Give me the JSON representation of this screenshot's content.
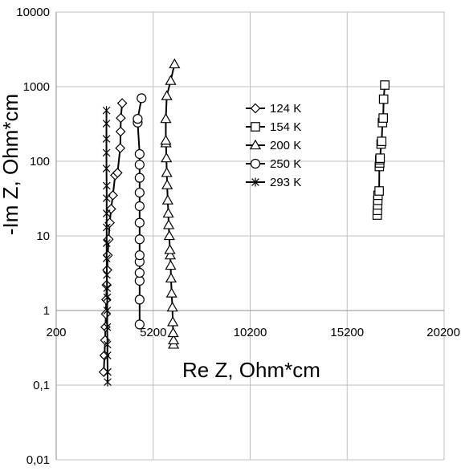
{
  "chart_data": {
    "type": "scatter",
    "xlabel": "Re Z, Ohm*cm",
    "ylabel": "-Im Z, Ohm*cm",
    "x_axis": {
      "min": 200,
      "max": 20200,
      "ticks": [
        200,
        5200,
        10200,
        15200,
        20200
      ],
      "tick_labels": [
        "200",
        "5200",
        "10200",
        "15200",
        "20200"
      ],
      "crosses_y_at": 1
    },
    "y_axis": {
      "scale": "log",
      "min": 0.01,
      "max": 10000,
      "ticks": [
        0.01,
        0.1,
        1,
        10,
        100,
        1000,
        10000
      ],
      "tick_labels": [
        "0,01",
        "0,1",
        "1",
        "10",
        "100",
        "1000",
        "10000"
      ]
    },
    "grid": {
      "horizontal": true,
      "vertical": true
    },
    "legend_position": "center-right",
    "series": [
      {
        "name": "124 K",
        "marker": "diamond",
        "points": [
          [
            2650,
            0.15
          ],
          [
            2690,
            0.25
          ],
          [
            2720,
            0.4
          ],
          [
            2740,
            0.6
          ],
          [
            2760,
            0.9
          ],
          [
            2780,
            1.4
          ],
          [
            2800,
            2.2
          ],
          [
            2830,
            3.5
          ],
          [
            2860,
            5.5
          ],
          [
            2900,
            9
          ],
          [
            2960,
            15
          ],
          [
            3030,
            23
          ],
          [
            3120,
            35
          ],
          [
            3240,
            65
          ],
          [
            3360,
            70
          ],
          [
            3500,
            150
          ],
          [
            3520,
            250
          ],
          [
            3530,
            380
          ],
          [
            3600,
            600
          ]
        ]
      },
      {
        "name": "154 K",
        "marker": "square",
        "points": [
          [
            16750,
            19
          ],
          [
            16760,
            22
          ],
          [
            16770,
            26
          ],
          [
            16780,
            30
          ],
          [
            16790,
            35
          ],
          [
            16850,
            40
          ],
          [
            16860,
            85
          ],
          [
            16880,
            95
          ],
          [
            16880,
            105
          ],
          [
            16900,
            110
          ],
          [
            16950,
            170
          ],
          [
            16980,
            185
          ],
          [
            17020,
            330
          ],
          [
            17060,
            380
          ],
          [
            17080,
            680
          ],
          [
            17140,
            1050
          ]
        ]
      },
      {
        "name": "200 K",
        "marker": "triangle",
        "points": [
          [
            6250,
            0.35
          ],
          [
            6250,
            0.4
          ],
          [
            6230,
            0.5
          ],
          [
            6210,
            0.7
          ],
          [
            6190,
            1.1
          ],
          [
            6150,
            1.7
          ],
          [
            6120,
            2.7
          ],
          [
            6100,
            4
          ],
          [
            6080,
            5.5
          ],
          [
            6060,
            6.5
          ],
          [
            6030,
            10
          ],
          [
            6000,
            14
          ],
          [
            5980,
            20
          ],
          [
            5950,
            30
          ],
          [
            5920,
            48
          ],
          [
            5900,
            70
          ],
          [
            5880,
            110
          ],
          [
            5860,
            175
          ],
          [
            5850,
            190
          ],
          [
            5850,
            370
          ],
          [
            5900,
            750
          ],
          [
            6100,
            1200
          ],
          [
            6300,
            2000
          ]
        ]
      },
      {
        "name": "250 K",
        "marker": "circle",
        "points": [
          [
            4500,
            0.65
          ],
          [
            4500,
            1.4
          ],
          [
            4500,
            2.5
          ],
          [
            4500,
            3.2
          ],
          [
            4500,
            4.5
          ],
          [
            4500,
            5.5
          ],
          [
            4500,
            9
          ],
          [
            4500,
            15
          ],
          [
            4500,
            25
          ],
          [
            4500,
            38
          ],
          [
            4500,
            60
          ],
          [
            4500,
            90
          ],
          [
            4500,
            125
          ],
          [
            4400,
            330
          ],
          [
            4400,
            370
          ],
          [
            4600,
            700
          ]
        ]
      },
      {
        "name": "293 K",
        "marker": "asterisk",
        "points": [
          [
            2850,
            0.11
          ],
          [
            2850,
            0.15
          ],
          [
            2840,
            0.25
          ],
          [
            2840,
            0.35
          ],
          [
            2830,
            0.6
          ],
          [
            2830,
            1
          ],
          [
            2830,
            1.5
          ],
          [
            2820,
            2
          ],
          [
            2810,
            3
          ],
          [
            2800,
            5
          ],
          [
            2800,
            8
          ],
          [
            2800,
            13
          ],
          [
            2800,
            20
          ],
          [
            2800,
            32
          ],
          [
            2800,
            47
          ],
          [
            2790,
            80
          ],
          [
            2790,
            130
          ],
          [
            2790,
            200
          ],
          [
            2790,
            320
          ],
          [
            2790,
            480
          ]
        ]
      }
    ]
  }
}
